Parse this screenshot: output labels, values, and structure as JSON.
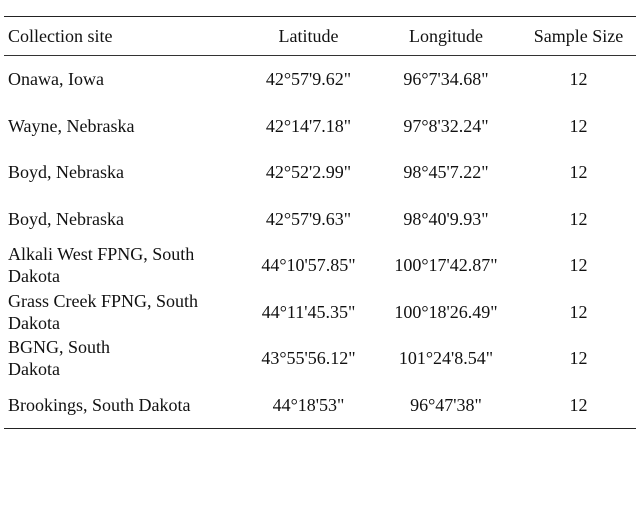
{
  "table": {
    "headers": {
      "site": "Collection site",
      "latitude": "Latitude",
      "longitude": "Longitude",
      "sample_size": "Sample Size"
    },
    "rows": [
      {
        "site": "Onawa, Iowa",
        "latitude": "42°57'9.62\"",
        "longitude": "96°7'34.68\"",
        "sample_size": "12"
      },
      {
        "site": "Wayne, Nebraska",
        "latitude": "42°14'7.18\"",
        "longitude": "97°8'32.24\"",
        "sample_size": "12"
      },
      {
        "site": "Boyd, Nebraska",
        "latitude": "42°52'2.99\"",
        "longitude": "98°45'7.22\"",
        "sample_size": "12"
      },
      {
        "site": "Boyd, Nebraska",
        "latitude": "42°57'9.63\"",
        "longitude": "98°40'9.93\"",
        "sample_size": "12"
      },
      {
        "site_line1": "Alkali West FPNG, South",
        "site_line2": "Dakota",
        "latitude": "44°10'57.85\"",
        "longitude": "100°17'42.87\"",
        "sample_size": "12"
      },
      {
        "site_line1": "Grass Creek FPNG, South",
        "site_line2": "Dakota",
        "latitude": "44°11'45.35\"",
        "longitude": "100°18'26.49\"",
        "sample_size": "12"
      },
      {
        "site_line1": "BGNG, South",
        "site_line2": "Dakota",
        "latitude": "43°55'56.12\"",
        "longitude": "101°24'8.54\"",
        "sample_size": "12"
      },
      {
        "site": "Brookings, South Dakota",
        "latitude": "44°18'53\"",
        "longitude": "96°47'38\"",
        "sample_size": "12"
      }
    ]
  }
}
